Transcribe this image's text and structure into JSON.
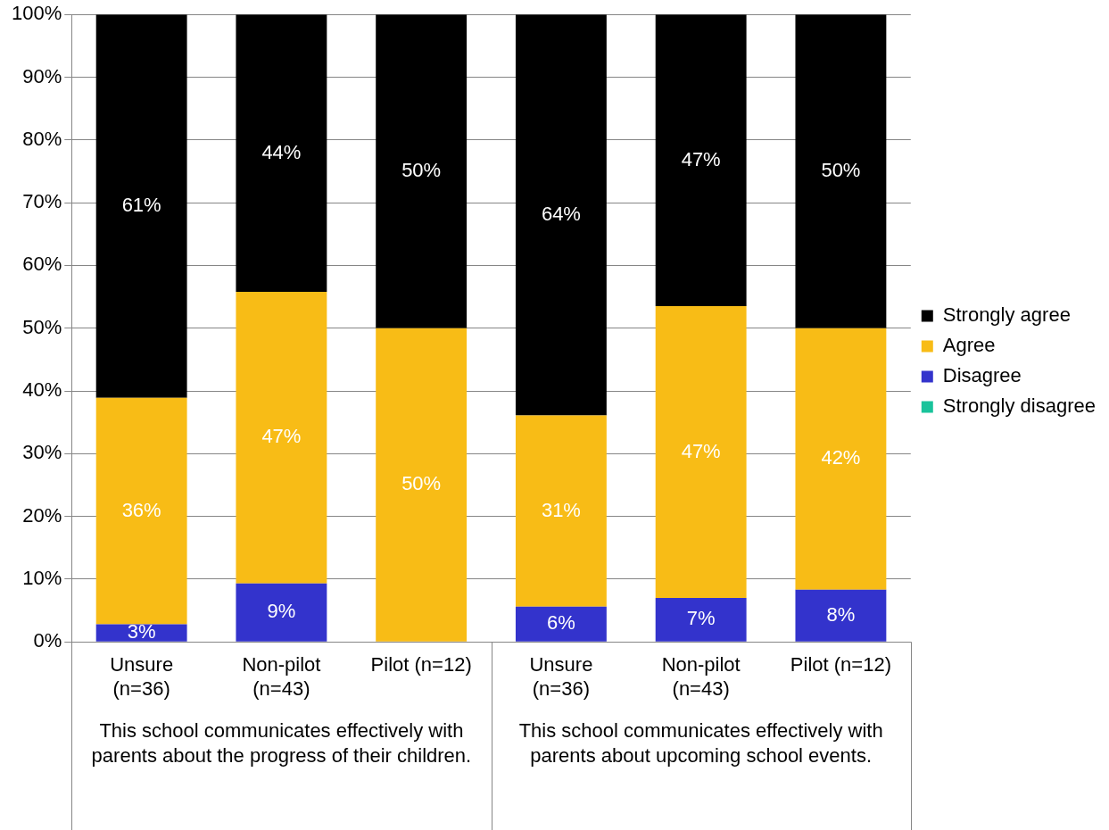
{
  "chart_data": {
    "type": "bar",
    "stacked": true,
    "categories": [
      "Unsure (n=36)",
      "Non-pilot (n=43)",
      "Pilot (n=12)",
      "Unsure (n=36)",
      "Non-pilot (n=43)",
      "Pilot (n=12)"
    ],
    "series": [
      {
        "name": "Strongly disagree",
        "color": "#19c39b",
        "values": [
          0,
          0,
          0,
          0,
          0,
          0
        ],
        "value_labels": [
          null,
          null,
          null,
          null,
          null,
          null
        ]
      },
      {
        "name": "Disagree",
        "color": "#3333cc",
        "values": [
          2.8,
          9.3,
          0,
          5.6,
          7.0,
          8.3
        ],
        "value_labels": [
          "3%",
          "9%",
          null,
          "6%",
          "7%",
          "8%"
        ]
      },
      {
        "name": "Agree",
        "color": "#f8bc16",
        "values": [
          36.1,
          46.5,
          50,
          30.5,
          46.5,
          41.7
        ],
        "value_labels": [
          "36%",
          "47%",
          "50%",
          "31%",
          "47%",
          "42%"
        ]
      },
      {
        "name": "Strongly agree",
        "color": "#000000",
        "values": [
          61.1,
          44.2,
          50,
          63.9,
          46.5,
          50
        ],
        "value_labels": [
          "61%",
          "44%",
          "50%",
          "64%",
          "47%",
          "50%"
        ]
      }
    ],
    "annotations": [
      "This school communicates effectively with parents about the progress of their children.",
      "This school communicates effectively with parents about upcoming school events."
    ],
    "ylim": [
      0,
      100
    ],
    "yticks": [
      {
        "value": 0,
        "label": "0%"
      },
      {
        "value": 10,
        "label": "10%"
      },
      {
        "value": 20,
        "label": "20%"
      },
      {
        "value": 30,
        "label": "30%"
      },
      {
        "value": 40,
        "label": "40%"
      },
      {
        "value": 50,
        "label": "50%"
      },
      {
        "value": 60,
        "label": "60%"
      },
      {
        "value": 70,
        "label": "70%"
      },
      {
        "value": 80,
        "label": "80%"
      },
      {
        "value": 90,
        "label": "90%"
      },
      {
        "value": 100,
        "label": "100%"
      }
    ],
    "grid": "y",
    "legend": "right"
  }
}
